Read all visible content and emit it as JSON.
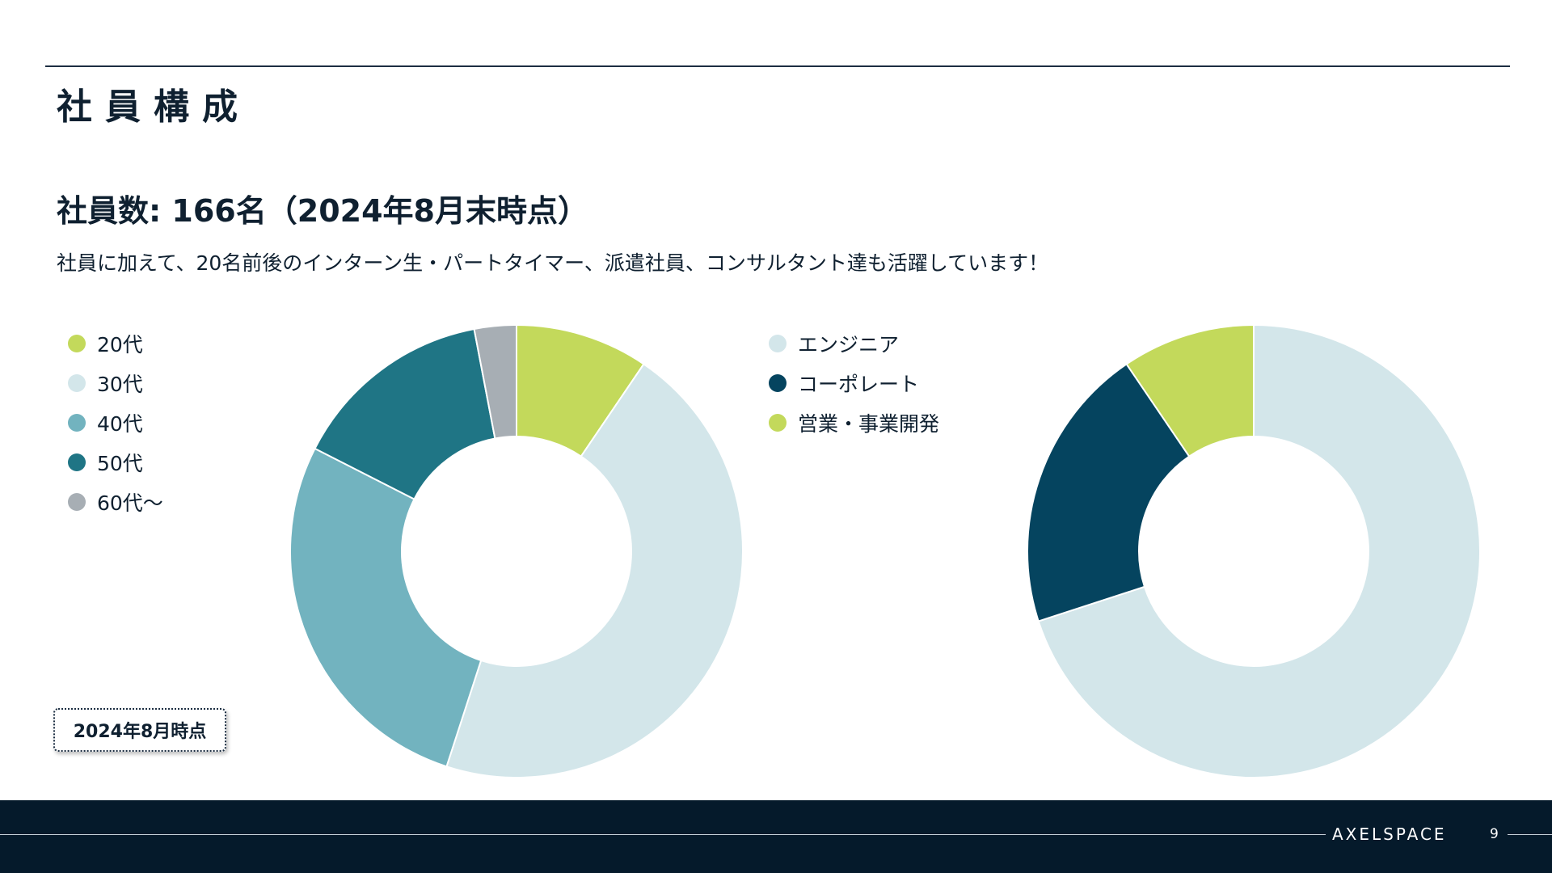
{
  "slide": {
    "title": "社員構成",
    "headline": "社員数: 166名（2024年8月末時点）",
    "subtext": "社員に加えて、20名前後のインターン生・パートタイマー、派遣社員、コンサルタント達も活躍しています！",
    "date_badge": "2024年8月時点"
  },
  "footer": {
    "logo_text": "AXELSPACE",
    "page_number": "9"
  },
  "colors": {
    "green": "#c3d95b",
    "pale_blue": "#d3e6ea",
    "mid_teal": "#72b3bf",
    "dark_teal": "#1f7585",
    "gray": "#a7aeb4",
    "navy": "#05445f",
    "footer_bg": "#051a2b"
  },
  "chart_data": [
    {
      "type": "pie",
      "donut": true,
      "legend_position": "left",
      "categories": [
        "20代",
        "30代",
        "40代",
        "50代",
        "60代～"
      ],
      "values": [
        9.5,
        45.5,
        27.5,
        14.5,
        3.0
      ],
      "unit": "%",
      "colors": [
        "#c3d95b",
        "#d3e6ea",
        "#72b3bf",
        "#1f7585",
        "#a7aeb4"
      ]
    },
    {
      "type": "pie",
      "donut": true,
      "legend_position": "left",
      "categories": [
        "エンジニア",
        "コーポレート",
        "営業・事業開発"
      ],
      "values": [
        70.0,
        20.5,
        9.5
      ],
      "unit": "%",
      "series_order": [
        0,
        1,
        2
      ],
      "colors": [
        "#d3e6ea",
        "#05445f",
        "#c3d95b"
      ]
    }
  ]
}
